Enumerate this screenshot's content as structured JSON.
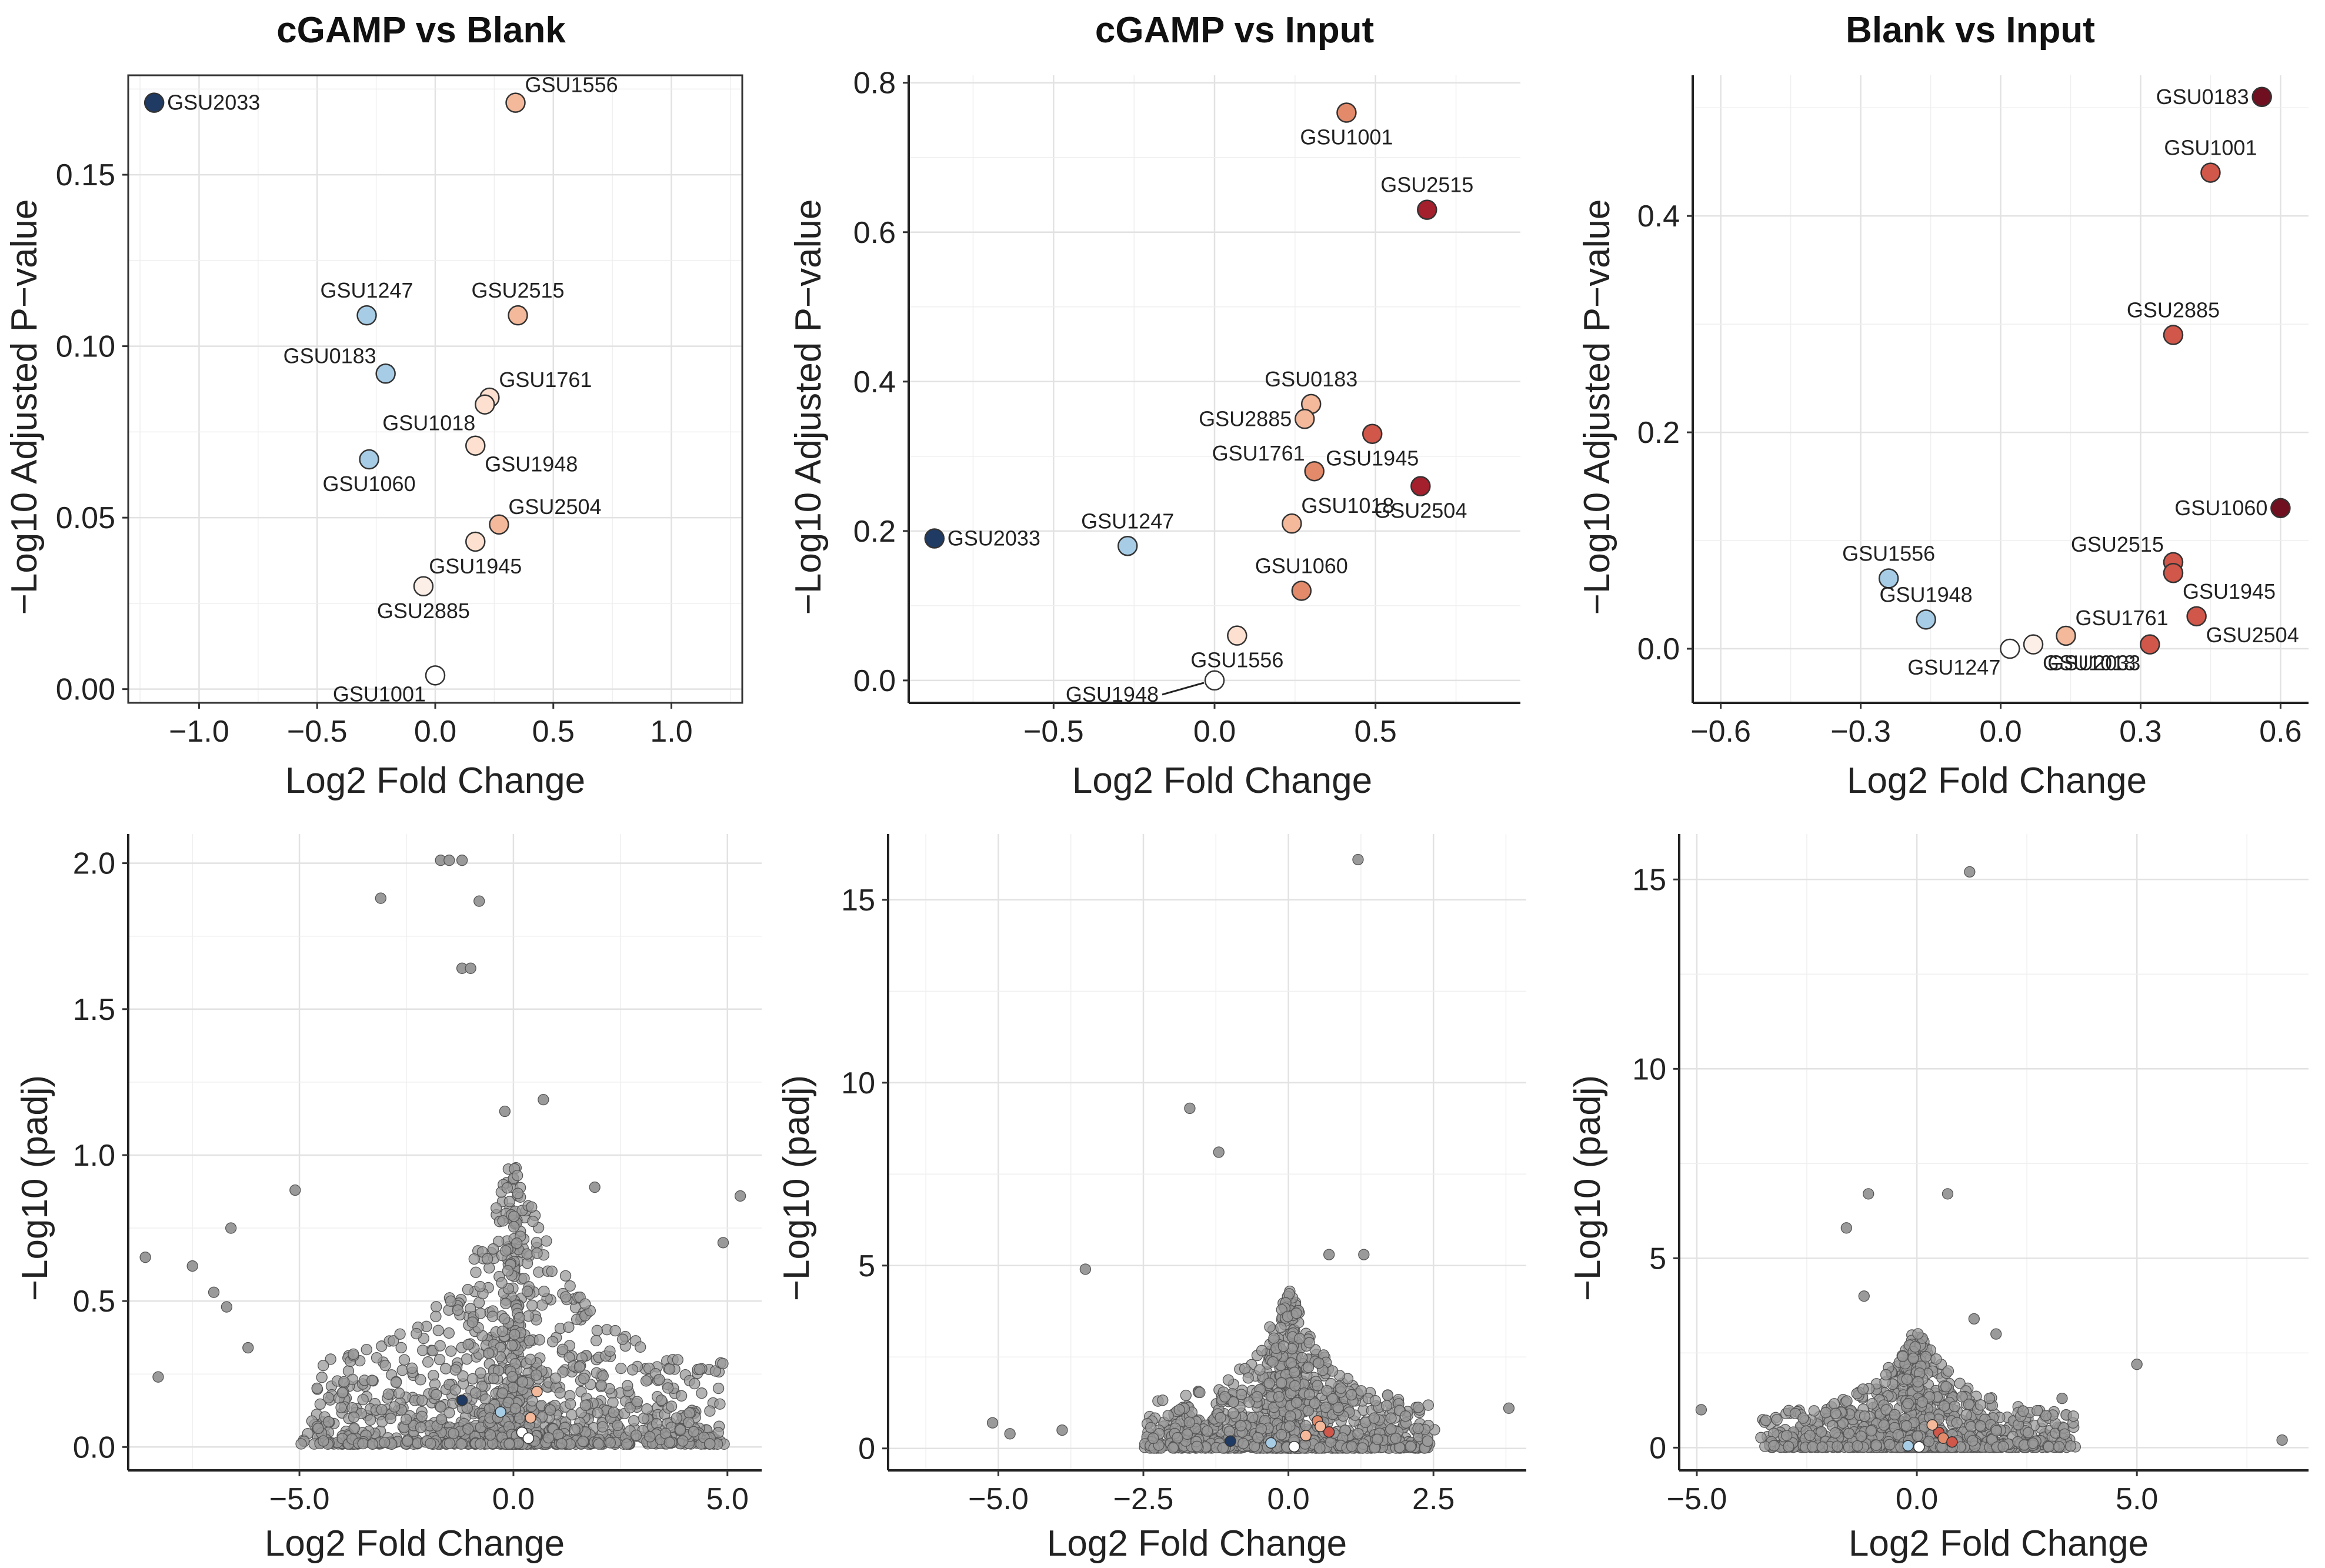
{
  "palette": {
    "grey_point": "#9a9a9a",
    "white_point": "#ffffff",
    "navy": "#1f3a63",
    "light_blue": "#a7cde6",
    "peach": "#f4b89a",
    "salmon": "#e38a6a",
    "red": "#d0574a",
    "dark_red": "#a4202d",
    "maroon": "#6f0f1f"
  },
  "chart_data": [
    {
      "type": "scatter",
      "title": "cGAMP vs Blank",
      "xlabel": "Log2 Fold Change",
      "ylabel": "−Log10 Adjusted P−value",
      "xlim": [
        -1.3,
        1.3
      ],
      "ylim": [
        -0.004,
        0.179
      ],
      "xticks": [
        -1.0,
        -0.5,
        0.0,
        0.5,
        1.0
      ],
      "xtick_labels": [
        "−1.0",
        "−0.5",
        "0.0",
        "0.5",
        "1.0"
      ],
      "yticks": [
        0.0,
        0.05,
        0.1,
        0.15
      ],
      "ytick_labels": [
        "0.00",
        "0.05",
        "0.10",
        "0.15"
      ],
      "axes_style": "box",
      "grid": true,
      "points": [
        {
          "label": "GSU2033",
          "x": -1.19,
          "y": 0.171,
          "color": "#1f3a63",
          "label_pos": "right"
        },
        {
          "label": "GSU1556",
          "x": 0.34,
          "y": 0.171,
          "color": "#f4b89a",
          "label_pos": "upper-right"
        },
        {
          "label": "GSU1247",
          "x": -0.29,
          "y": 0.109,
          "color": "#a7cde6",
          "label_pos": "above"
        },
        {
          "label": "GSU2515",
          "x": 0.35,
          "y": 0.109,
          "color": "#f4b89a",
          "label_pos": "above"
        },
        {
          "label": "GSU0183",
          "x": -0.21,
          "y": 0.092,
          "color": "#a7cde6",
          "label_pos": "upper-left"
        },
        {
          "label": "GSU1761",
          "x": 0.23,
          "y": 0.085,
          "color": "#fde0cf",
          "label_pos": "upper-right"
        },
        {
          "label": "GSU1018",
          "x": 0.21,
          "y": 0.083,
          "color": "#fde0cf",
          "label_pos": "lower-left"
        },
        {
          "label": "GSU1948",
          "x": 0.17,
          "y": 0.071,
          "color": "#fde0cf",
          "label_pos": "lower-right"
        },
        {
          "label": "GSU1060",
          "x": -0.28,
          "y": 0.067,
          "color": "#a7cde6",
          "label_pos": "below"
        },
        {
          "label": "GSU2504",
          "x": 0.27,
          "y": 0.048,
          "color": "#f4b89a",
          "label_pos": "upper-right"
        },
        {
          "label": "GSU1945",
          "x": 0.17,
          "y": 0.043,
          "color": "#fde0cf",
          "label_pos": "below"
        },
        {
          "label": "GSU2885",
          "x": -0.05,
          "y": 0.03,
          "color": "#fbefe8",
          "label_pos": "below"
        },
        {
          "label": "GSU1001",
          "x": 0.0,
          "y": 0.004,
          "color": "#ffffff",
          "label_pos": "lower-left"
        }
      ]
    },
    {
      "type": "scatter",
      "title": "cGAMP vs Input",
      "xlabel": "Log2 Fold Change",
      "ylabel": "−Log10 Adjusted P−value",
      "xlim": [
        -0.95,
        0.95
      ],
      "ylim": [
        -0.03,
        0.81
      ],
      "xticks": [
        -0.5,
        0.0,
        0.5
      ],
      "xtick_labels": [
        "−0.5",
        "0.0",
        "0.5"
      ],
      "yticks": [
        0.0,
        0.2,
        0.4,
        0.6,
        0.8
      ],
      "ytick_labels": [
        "0.0",
        "0.2",
        "0.4",
        "0.6",
        "0.8"
      ],
      "axes_style": "open",
      "grid": true,
      "points": [
        {
          "label": "GSU1001",
          "x": 0.41,
          "y": 0.76,
          "color": "#e38a6a",
          "label_pos": "below"
        },
        {
          "label": "GSU2515",
          "x": 0.66,
          "y": 0.63,
          "color": "#a4202d",
          "label_pos": "above"
        },
        {
          "label": "GSU0183",
          "x": 0.3,
          "y": 0.37,
          "color": "#f4b89a",
          "label_pos": "above"
        },
        {
          "label": "GSU2885",
          "x": 0.28,
          "y": 0.35,
          "color": "#f4b89a",
          "label_pos": "left"
        },
        {
          "label": "GSU1945",
          "x": 0.49,
          "y": 0.33,
          "color": "#d0574a",
          "label_pos": "below"
        },
        {
          "label": "GSU1761",
          "x": 0.31,
          "y": 0.28,
          "color": "#e38a6a",
          "label_pos": "upper-left"
        },
        {
          "label": "GSU2504",
          "x": 0.64,
          "y": 0.26,
          "color": "#a4202d",
          "label_pos": "below"
        },
        {
          "label": "GSU1018",
          "x": 0.24,
          "y": 0.21,
          "color": "#f4b89a",
          "label_pos": "upper-right"
        },
        {
          "label": "GSU2033",
          "x": -0.87,
          "y": 0.19,
          "color": "#1f3a63",
          "label_pos": "right"
        },
        {
          "label": "GSU1247",
          "x": -0.27,
          "y": 0.18,
          "color": "#a7cde6",
          "label_pos": "above"
        },
        {
          "label": "GSU1060",
          "x": 0.27,
          "y": 0.12,
          "color": "#e38a6a",
          "label_pos": "above"
        },
        {
          "label": "GSU1556",
          "x": 0.07,
          "y": 0.06,
          "color": "#fde0cf",
          "label_pos": "below"
        },
        {
          "label": "GSU1948",
          "x": 0.0,
          "y": 0.0,
          "color": "#ffffff",
          "label_pos": "leader-left"
        }
      ]
    },
    {
      "type": "scatter",
      "title": "Blank vs Input",
      "xlabel": "Log2 Fold Change",
      "ylabel": "−Log10 Adjusted P−value",
      "xlim": [
        -0.66,
        0.66
      ],
      "ylim": [
        -0.05,
        0.53
      ],
      "xticks": [
        -0.6,
        -0.3,
        0.0,
        0.3,
        0.6
      ],
      "xtick_labels": [
        "−0.6",
        "−0.3",
        "0.0",
        "0.3",
        "0.6"
      ],
      "yticks": [
        0.0,
        0.2,
        0.4
      ],
      "ytick_labels": [
        "0.0",
        "0.2",
        "0.4"
      ],
      "axes_style": "open",
      "grid": true,
      "points": [
        {
          "label": "GSU0183",
          "x": 0.56,
          "y": 0.51,
          "color": "#6f0f1f",
          "label_pos": "left"
        },
        {
          "label": "GSU1001",
          "x": 0.45,
          "y": 0.44,
          "color": "#d0574a",
          "label_pos": "above"
        },
        {
          "label": "GSU2885",
          "x": 0.37,
          "y": 0.29,
          "color": "#d0574a",
          "label_pos": "above"
        },
        {
          "label": "GSU1060",
          "x": 0.6,
          "y": 0.13,
          "color": "#6f0f1f",
          "label_pos": "left"
        },
        {
          "label": "GSU2515",
          "x": 0.37,
          "y": 0.08,
          "color": "#d0574a",
          "label_pos": "upper-left"
        },
        {
          "label": "GSU1945",
          "x": 0.37,
          "y": 0.07,
          "color": "#d0574a",
          "label_pos": "lower-right"
        },
        {
          "label": "GSU1556",
          "x": -0.24,
          "y": 0.065,
          "color": "#a7cde6",
          "label_pos": "above"
        },
        {
          "label": "GSU2504",
          "x": 0.42,
          "y": 0.03,
          "color": "#d0574a",
          "label_pos": "lower-right"
        },
        {
          "label": "GSU1948",
          "x": -0.16,
          "y": 0.027,
          "color": "#a7cde6",
          "label_pos": "above"
        },
        {
          "label": "GSU1761",
          "x": 0.14,
          "y": 0.012,
          "color": "#f4b89a",
          "label_pos": "upper-right"
        },
        {
          "label": "GSU1018",
          "x": 0.07,
          "y": 0.004,
          "color": "#fbefe8",
          "label_pos": "lower-right"
        },
        {
          "label": "GSU2033",
          "x": 0.32,
          "y": 0.004,
          "color": "#d0574a",
          "label_pos": "lower-left"
        },
        {
          "label": "GSU1247",
          "x": 0.02,
          "y": 0.0,
          "color": "#ffffff",
          "label_pos": "lower-left"
        }
      ]
    },
    {
      "type": "scatter",
      "title": "",
      "xlabel": "Log2 Fold Change",
      "ylabel": "−Log10 (padj)",
      "xlim": [
        -9.0,
        5.8
      ],
      "ylim": [
        -0.08,
        2.1
      ],
      "xticks": [
        -5.0,
        0.0,
        5.0
      ],
      "xtick_labels": [
        "−5.0",
        "0.0",
        "5.0"
      ],
      "yticks": [
        0.0,
        0.5,
        1.0,
        1.5,
        2.0
      ],
      "ytick_labels": [
        "0.0",
        "0.5",
        "1.0",
        "1.5",
        "2.0"
      ],
      "axes_style": "open",
      "grid": true,
      "cloud": {
        "n": 1300,
        "spread": 1.5,
        "ymax": 1.0,
        "seed": 11
      },
      "highlighted": [
        {
          "x": -1.2,
          "y": 0.16,
          "color": "#1f3a63"
        },
        {
          "x": -0.3,
          "y": 0.12,
          "color": "#a7cde6"
        },
        {
          "x": 0.4,
          "y": 0.1,
          "color": "#f4b89a"
        },
        {
          "x": 0.55,
          "y": 0.19,
          "color": "#f4b89a"
        },
        {
          "x": 0.2,
          "y": 0.05,
          "color": "#ffffff"
        },
        {
          "x": 0.35,
          "y": 0.03,
          "color": "#ffffff"
        }
      ],
      "outliers": [
        {
          "x": -1.7,
          "y": 2.01
        },
        {
          "x": -1.5,
          "y": 2.01
        },
        {
          "x": -1.2,
          "y": 2.01
        },
        {
          "x": -3.1,
          "y": 1.88
        },
        {
          "x": -0.8,
          "y": 1.87
        },
        {
          "x": -1.2,
          "y": 1.64
        },
        {
          "x": -1.0,
          "y": 1.64
        },
        {
          "x": 0.7,
          "y": 1.19
        },
        {
          "x": -0.2,
          "y": 1.15
        },
        {
          "x": -5.1,
          "y": 0.88
        },
        {
          "x": 1.9,
          "y": 0.89
        },
        {
          "x": -8.6,
          "y": 0.65
        },
        {
          "x": -7.5,
          "y": 0.62
        },
        {
          "x": -6.6,
          "y": 0.75
        },
        {
          "x": -7.0,
          "y": 0.53
        },
        {
          "x": -6.7,
          "y": 0.48
        },
        {
          "x": -6.2,
          "y": 0.34
        },
        {
          "x": -8.3,
          "y": 0.24
        },
        {
          "x": 5.3,
          "y": 0.86
        },
        {
          "x": 4.9,
          "y": 0.7
        }
      ]
    },
    {
      "type": "scatter",
      "title": "",
      "xlabel": "Log2 Fold Change",
      "ylabel": "−Log10 (padj)",
      "xlim": [
        -6.9,
        4.1
      ],
      "ylim": [
        -0.6,
        16.8
      ],
      "xticks": [
        -5.0,
        -2.5,
        0.0,
        2.5
      ],
      "xtick_labels": [
        "−5.0",
        "−2.5",
        "0.0",
        "2.5"
      ],
      "yticks": [
        0,
        5,
        10,
        15
      ],
      "ytick_labels": [
        "0",
        "5",
        "10",
        "15"
      ],
      "axes_style": "open",
      "grid": true,
      "cloud": {
        "n": 1200,
        "spread": 0.75,
        "ymax": 4.5,
        "seed": 23
      },
      "highlighted": [
        {
          "x": -1.0,
          "y": 0.2,
          "color": "#1f3a63"
        },
        {
          "x": -0.3,
          "y": 0.15,
          "color": "#a7cde6"
        },
        {
          "x": 0.3,
          "y": 0.35,
          "color": "#f4b89a"
        },
        {
          "x": 0.5,
          "y": 0.75,
          "color": "#e38a6a"
        },
        {
          "x": 0.7,
          "y": 0.45,
          "color": "#d0574a"
        },
        {
          "x": 0.55,
          "y": 0.6,
          "color": "#f4b89a"
        },
        {
          "x": 0.1,
          "y": 0.05,
          "color": "#ffffff"
        }
      ],
      "outliers": [
        {
          "x": 1.2,
          "y": 16.1
        },
        {
          "x": -1.7,
          "y": 9.3
        },
        {
          "x": -1.2,
          "y": 8.1
        },
        {
          "x": -3.5,
          "y": 4.9
        },
        {
          "x": -5.1,
          "y": 0.7
        },
        {
          "x": -4.8,
          "y": 0.4
        },
        {
          "x": -3.9,
          "y": 0.5
        },
        {
          "x": 3.8,
          "y": 1.1
        },
        {
          "x": 2.4,
          "y": 0.2
        },
        {
          "x": 1.3,
          "y": 5.3
        },
        {
          "x": 0.7,
          "y": 5.3
        }
      ]
    },
    {
      "type": "scatter",
      "title": "",
      "xlabel": "Log2 Fold Change",
      "ylabel": "−Log10 (padj)",
      "xlim": [
        -5.4,
        8.9
      ],
      "ylim": [
        -0.6,
        16.2
      ],
      "xticks": [
        -5.0,
        0.0,
        5.0
      ],
      "xtick_labels": [
        "−5.0",
        "0.0",
        "5.0"
      ],
      "yticks": [
        0,
        5,
        10,
        15
      ],
      "ytick_labels": [
        "0",
        "5",
        "10",
        "15"
      ],
      "axes_style": "open",
      "grid": true,
      "cloud": {
        "n": 1200,
        "spread": 1.1,
        "ymax": 3.2,
        "seed": 37
      },
      "highlighted": [
        {
          "x": 0.5,
          "y": 0.4,
          "color": "#d0574a"
        },
        {
          "x": 0.6,
          "y": 0.25,
          "color": "#e38a6a"
        },
        {
          "x": 0.35,
          "y": 0.6,
          "color": "#f4b89a"
        },
        {
          "x": 0.8,
          "y": 0.15,
          "color": "#d0574a"
        },
        {
          "x": -0.2,
          "y": 0.05,
          "color": "#a7cde6"
        },
        {
          "x": 0.05,
          "y": 0.02,
          "color": "#ffffff"
        }
      ],
      "outliers": [
        {
          "x": 1.2,
          "y": 15.2
        },
        {
          "x": -1.1,
          "y": 6.7
        },
        {
          "x": 0.7,
          "y": 6.7
        },
        {
          "x": -1.6,
          "y": 5.8
        },
        {
          "x": -1.2,
          "y": 4.0
        },
        {
          "x": 5.0,
          "y": 2.2
        },
        {
          "x": 8.3,
          "y": 0.2
        },
        {
          "x": -4.9,
          "y": 1.0
        },
        {
          "x": 3.3,
          "y": 1.3
        },
        {
          "x": 1.3,
          "y": 3.4
        },
        {
          "x": 1.8,
          "y": 3.0
        }
      ]
    }
  ]
}
